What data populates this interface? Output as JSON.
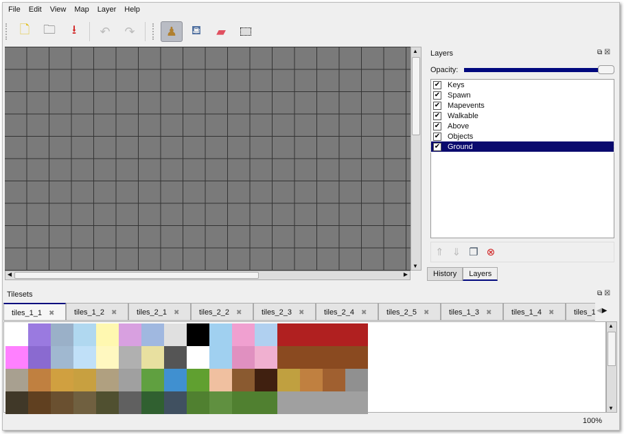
{
  "menu": [
    "File",
    "Edit",
    "View",
    "Map",
    "Layer",
    "Help"
  ],
  "toolbar": {
    "icons": [
      "new-file-icon",
      "open-folder-icon",
      "save-icon",
      "undo-icon",
      "redo-icon",
      "stamp-brush-icon",
      "bucket-fill-icon",
      "eraser-icon",
      "rect-select-icon"
    ],
    "glyphs": [
      "🗋",
      "🗀",
      "⭳",
      "↶",
      "↷",
      "♟",
      "🪣",
      "▬",
      "⬚"
    ],
    "active": "stamp-brush-icon"
  },
  "layers_panel": {
    "title": "Layers",
    "opacity_label": "Opacity:",
    "opacity": 1.0,
    "layers": [
      {
        "name": "Keys",
        "visible": true
      },
      {
        "name": "Spawn",
        "visible": true
      },
      {
        "name": "Mapevents",
        "visible": true
      },
      {
        "name": "Walkable",
        "visible": true
      },
      {
        "name": "Above",
        "visible": true
      },
      {
        "name": "Objects",
        "visible": true
      },
      {
        "name": "Ground",
        "visible": true,
        "selected": true
      }
    ],
    "buttons": [
      "raise-layer",
      "lower-layer",
      "duplicate-layer",
      "remove-layer"
    ]
  },
  "dock_tabs": [
    {
      "label": "History"
    },
    {
      "label": "Layers",
      "active": true
    }
  ],
  "tilesets": {
    "title": "Tilesets",
    "tabs": [
      "tiles_1_1",
      "tiles_1_2",
      "tiles_2_1",
      "tiles_2_2",
      "tiles_2_3",
      "tiles_2_4",
      "tiles_2_5",
      "tiles_1_3",
      "tiles_1_4",
      "tiles_1_"
    ],
    "active": 0,
    "tile_colors": [
      [
        "#ffffff",
        "#9a7ae0",
        "#9ab0c8",
        "#b0d8f0",
        "#fff8b0",
        "#d8a0e0",
        "#a0b8e0",
        "#e0e0e0",
        "#000000",
        "#a0d0f0",
        "#f0a0d0",
        "#b0d0f0",
        "#b02020",
        "#b02020",
        "#b02020",
        "#b02020"
      ],
      [
        "#ff80ff",
        "#8a6ad0",
        "#a0b8d0",
        "#c0e0f8",
        "#fff8c0",
        "#b0b0b0",
        "#e8e0a0",
        "#555555",
        "#ffffff",
        "#a0d0f0",
        "#e090c0",
        "#f0b0d0",
        "#8a4a20",
        "#8a4a20",
        "#8a4a20",
        "#8a4a20"
      ],
      [
        "#a8a090",
        "#c08040",
        "#d0a040",
        "#c8a040",
        "#b0a080",
        "#a0a0a0",
        "#60a040",
        "#4090d0",
        "#60a030",
        "#f0c0a0",
        "#8a5a30",
        "#402010",
        "#c0a040",
        "#c08040",
        "#a06030",
        "#909090"
      ],
      [
        "#403828",
        "#604020",
        "#6a5030",
        "#706040",
        "#505030",
        "#606060",
        "#306030",
        "#405060",
        "#508030",
        "#609040",
        "#508030",
        "#508030",
        "#a0a0a0",
        "#a0a0a0",
        "#a0a0a0",
        "#a0a0a0"
      ]
    ]
  },
  "status": {
    "zoom": "100%"
  }
}
